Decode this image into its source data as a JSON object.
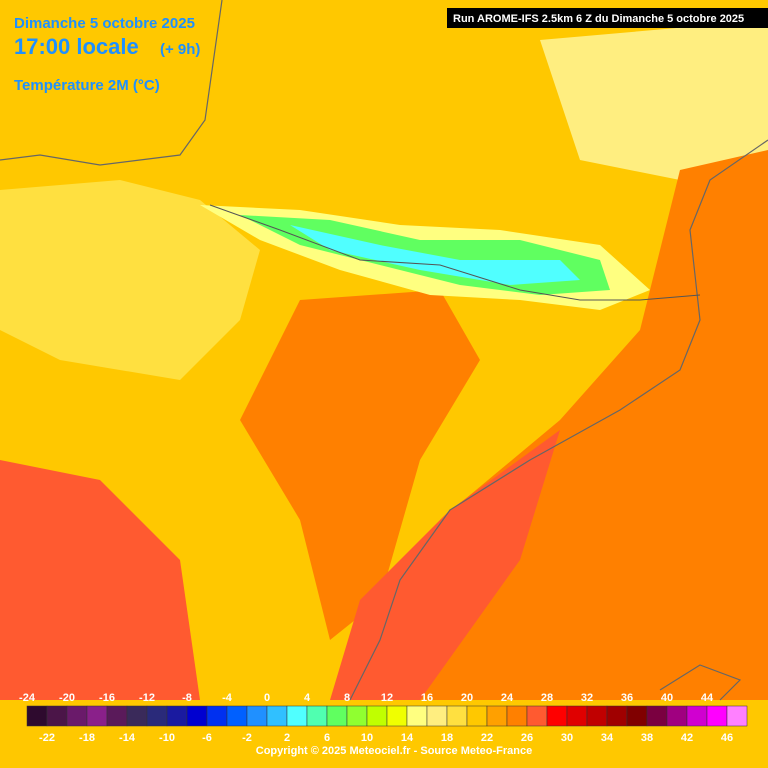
{
  "header": {
    "date": "Dimanche 5 octobre 2025",
    "time": "17:00 locale",
    "lead": "(+ 9h)",
    "parameter": "Température 2M (°C)",
    "run": "Run AROME-IFS 2.5km 6 Z du Dimanche 5 octobre 2025"
  },
  "legend": {
    "steps": [
      {
        "value": -24,
        "color": "#2e0a2e"
      },
      {
        "value": -22,
        "color": "#4b1548"
      },
      {
        "value": -20,
        "color": "#6a1a6a"
      },
      {
        "value": -18,
        "color": "#8a208a"
      },
      {
        "value": -16,
        "color": "#5a1a5a"
      },
      {
        "value": -14,
        "color": "#3a2a5a"
      },
      {
        "value": -12,
        "color": "#2a2a7a"
      },
      {
        "value": -10,
        "color": "#1a1aa0"
      },
      {
        "value": -8,
        "color": "#0000d0"
      },
      {
        "value": -6,
        "color": "#0030f0"
      },
      {
        "value": -4,
        "color": "#0060ff"
      },
      {
        "value": -2,
        "color": "#2090ff"
      },
      {
        "value": 0,
        "color": "#30c0ff"
      },
      {
        "value": 2,
        "color": "#50ffff"
      },
      {
        "value": 4,
        "color": "#50ffb0"
      },
      {
        "value": 6,
        "color": "#60ff60"
      },
      {
        "value": 8,
        "color": "#90ff30"
      },
      {
        "value": 10,
        "color": "#c0ff00"
      },
      {
        "value": 12,
        "color": "#f0ff00"
      },
      {
        "value": 14,
        "color": "#ffff80"
      },
      {
        "value": 16,
        "color": "#ffee80"
      },
      {
        "value": 18,
        "color": "#ffe040"
      },
      {
        "value": 20,
        "color": "#ffc800"
      },
      {
        "value": 22,
        "color": "#ffa000"
      },
      {
        "value": 24,
        "color": "#ff8000"
      },
      {
        "value": 26,
        "color": "#ff5a30"
      },
      {
        "value": 28,
        "color": "#ff0000"
      },
      {
        "value": 30,
        "color": "#e00000"
      },
      {
        "value": 32,
        "color": "#c00000"
      },
      {
        "value": 34,
        "color": "#a00000"
      },
      {
        "value": 36,
        "color": "#800000"
      },
      {
        "value": 38,
        "color": "#7a0040"
      },
      {
        "value": 40,
        "color": "#a00080"
      },
      {
        "value": 42,
        "color": "#d000d0"
      },
      {
        "value": 44,
        "color": "#ff00ff"
      },
      {
        "value": 46,
        "color": "#ff80ff"
      }
    ]
  },
  "footer": {
    "copyright": "Copyright © 2025 Meteociel.fr - Source Meteo-France"
  }
}
